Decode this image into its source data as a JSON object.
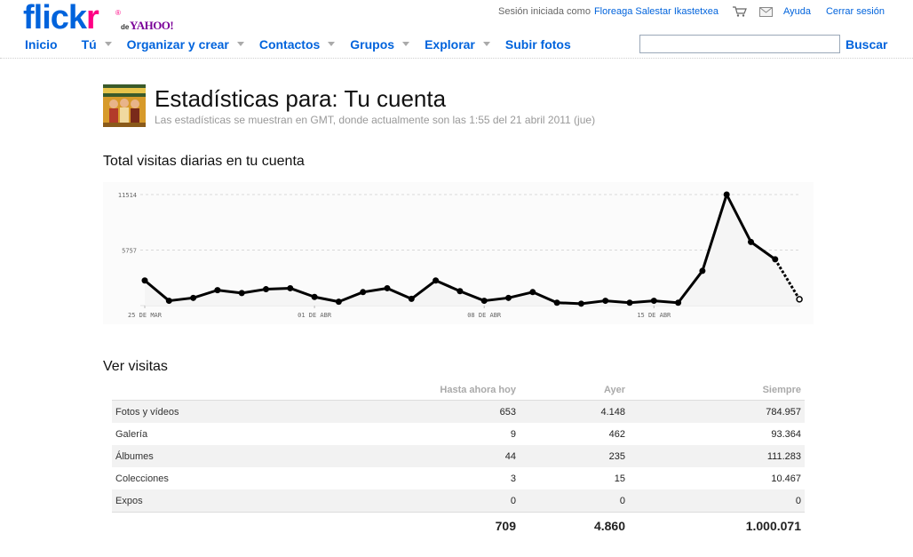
{
  "brand": {
    "logo_main": "flick",
    "logo_r": "r",
    "logo_reg": "®",
    "logo_de": "de",
    "logo_yahoo": "YAHOO!"
  },
  "topbar": {
    "session_text": "Sesión iniciada como",
    "username": "Floreaga Salestar Ikastetxea",
    "help": "Ayuda",
    "logout": "Cerrar sesión"
  },
  "nav": {
    "items": [
      "Inicio",
      "Tú",
      "Organizar y crear",
      "Contactos",
      "Grupos",
      "Explorar",
      "Subir fotos"
    ]
  },
  "search": {
    "value": "",
    "button": "Buscar"
  },
  "page": {
    "title": "Estadísticas para: Tu cuenta",
    "subtitle": "Las estadísticas se muestran en GMT, donde actualmente son las 1:55 del 21 abril 2011 (jue)",
    "chart_heading": "Total visitas diarias en tu cuenta",
    "table_heading": "Ver visitas"
  },
  "chart_data": {
    "type": "line",
    "title": "",
    "xlabel": "",
    "ylabel": "",
    "y_ticks": [
      "11514",
      "5757"
    ],
    "ylim": [
      0,
      11514
    ],
    "x_ticks": [
      "25 DE MAR",
      "01 DE ABR",
      "08 DE ABR",
      "15 DE ABR"
    ],
    "x": [
      "2011-03-25",
      "2011-03-26",
      "2011-03-27",
      "2011-03-28",
      "2011-03-29",
      "2011-03-30",
      "2011-03-31",
      "2011-04-01",
      "2011-04-02",
      "2011-04-03",
      "2011-04-04",
      "2011-04-05",
      "2011-04-06",
      "2011-04-07",
      "2011-04-08",
      "2011-04-09",
      "2011-04-10",
      "2011-04-11",
      "2011-04-12",
      "2011-04-13",
      "2011-04-14",
      "2011-04-15",
      "2011-04-16",
      "2011-04-17",
      "2011-04-18",
      "2011-04-19",
      "2011-04-20",
      "2011-04-21"
    ],
    "values": [
      2600,
      500,
      800,
      1600,
      1300,
      1700,
      1800,
      900,
      400,
      1400,
      1800,
      700,
      2600,
      1500,
      500,
      800,
      1400,
      300,
      200,
      500,
      300,
      500,
      300,
      3600,
      11514,
      6600,
      4800,
      653
    ],
    "grid": true,
    "last_segment_dashed": true,
    "line_color": "#000000",
    "area_color": "#f5f5f5"
  },
  "table": {
    "headers": [
      "",
      "Hasta ahora hoy",
      "Ayer",
      "Siempre"
    ],
    "rows": [
      [
        "Fotos y vídeos",
        "653",
        "4.148",
        "784.957"
      ],
      [
        "Galería",
        "9",
        "462",
        "93.364"
      ],
      [
        "Álbumes",
        "44",
        "235",
        "111.283"
      ],
      [
        "Colecciones",
        "3",
        "15",
        "10.467"
      ],
      [
        "Expos",
        "0",
        "0",
        "0"
      ]
    ],
    "totals": [
      "",
      "709",
      "4.860",
      "1.000.071"
    ]
  },
  "colors": {
    "link": "#0063dc",
    "brand_pink": "#ff0084",
    "yahoo_purple": "#7b0099"
  },
  "icons": {
    "cart": "cart-icon",
    "mail": "mail-icon",
    "caret": "chevron-down-icon"
  }
}
